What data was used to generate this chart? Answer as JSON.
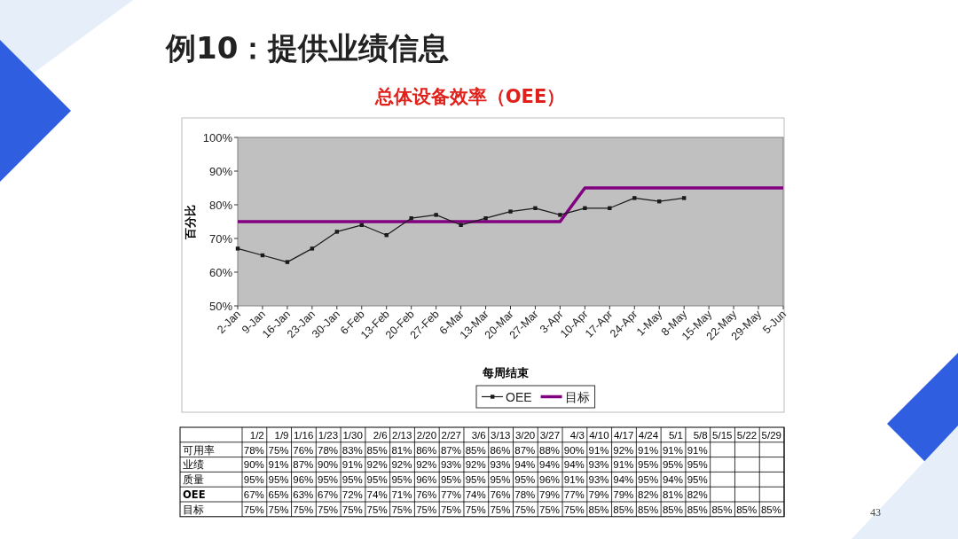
{
  "chart_data": [
    {
      "type": "line",
      "title": "例10：提供业绩信息",
      "subtitle": "总体设备效率（OEE）",
      "xlabel": "每周结束",
      "ylabel": "百分比",
      "categories": [
        "2-Jan",
        "9-Jan",
        "16-Jan",
        "23-Jan",
        "30-Jan",
        "6-Feb",
        "13-Feb",
        "20-Feb",
        "27-Feb",
        "6-Mar",
        "13-Mar",
        "20-Mar",
        "27-Mar",
        "3-Apr",
        "10-Apr",
        "17-Apr",
        "24-Apr",
        "1-May",
        "8-May",
        "15-May",
        "22-May",
        "29-May",
        "5-Jun"
      ],
      "series": [
        {
          "name": "OEE",
          "color": "#1a1a1a",
          "marker": "square",
          "values": [
            67,
            65,
            63,
            67,
            72,
            74,
            71,
            76,
            77,
            74,
            76,
            78,
            79,
            77,
            79,
            79,
            82,
            81,
            82,
            null,
            null,
            null,
            null
          ]
        },
        {
          "name": "目标",
          "color": "#800080",
          "marker": "none",
          "values": [
            75,
            75,
            75,
            75,
            75,
            75,
            75,
            75,
            75,
            75,
            75,
            75,
            75,
            75,
            85,
            85,
            85,
            85,
            85,
            85,
            85,
            85,
            85
          ]
        }
      ],
      "ylim": [
        50,
        100
      ],
      "yticks": [
        {
          "value": 50,
          "label": "50%"
        },
        {
          "value": 60,
          "label": "60%"
        },
        {
          "value": 70,
          "label": "70%"
        },
        {
          "value": 80,
          "label": "80%"
        },
        {
          "value": 90,
          "label": "90%"
        },
        {
          "value": 100,
          "label": "100%"
        }
      ],
      "grid": false,
      "legend": "bottom",
      "annotations": [
        "43"
      ]
    },
    {
      "type": "other",
      "categories": [
        "1/2",
        "1/9",
        "1/16",
        "1/23",
        "1/30",
        "2/6",
        "2/13",
        "2/20",
        "2/27",
        "3/6",
        "3/13",
        "3/20",
        "3/27",
        "4/3",
        "4/10",
        "4/17",
        "4/24",
        "5/1",
        "5/8",
        "5/15",
        "5/22",
        "5/29"
      ],
      "series": [
        {
          "name": "可用率",
          "values": [
            78,
            75,
            76,
            78,
            83,
            85,
            81,
            86,
            87,
            85,
            86,
            87,
            88,
            90,
            91,
            92,
            91,
            91,
            91,
            null,
            null,
            null
          ],
          "value_labels": [
            "78%",
            "75%",
            "76%",
            "78%",
            "83%",
            "85%",
            "81%",
            "86%",
            "87%",
            "85%",
            "86%",
            "87%",
            "88%",
            "90%",
            "91%",
            "92%",
            "91%",
            "91%",
            "91%",
            null,
            null,
            null
          ]
        },
        {
          "name": "业绩",
          "values": [
            90,
            91,
            87,
            90,
            91,
            92,
            92,
            92,
            93,
            92,
            93,
            94,
            94,
            94,
            93,
            91,
            95,
            95,
            95,
            null,
            null,
            null
          ],
          "value_labels": [
            "90%",
            "91%",
            "87%",
            "90%",
            "91%",
            "92%",
            "92%",
            "92%",
            "93%",
            "92%",
            "93%",
            "94%",
            "94%",
            "94%",
            "93%",
            "91%",
            "95%",
            "95%",
            "95%",
            null,
            null,
            null
          ]
        },
        {
          "name": "质量",
          "values": [
            95,
            95,
            96,
            95,
            95,
            95,
            95,
            96,
            95,
            95,
            95,
            95,
            96,
            91,
            93,
            94,
            95,
            94,
            95,
            null,
            null,
            null
          ],
          "value_labels": [
            "95%",
            "95%",
            "96%",
            "95%",
            "95%",
            "95%",
            "95%",
            "96%",
            "95%",
            "95%",
            "95%",
            "95%",
            "96%",
            "91%",
            "93%",
            "94%",
            "95%",
            "94%",
            "95%",
            null,
            null,
            null
          ]
        },
        {
          "name": "OEE",
          "values": [
            67,
            65,
            63,
            67,
            72,
            74,
            71,
            76,
            77,
            74,
            76,
            78,
            79,
            77,
            79,
            79,
            82,
            81,
            82,
            null,
            null,
            null
          ],
          "value_labels": [
            "67%",
            "65%",
            "63%",
            "67%",
            "72%",
            "74%",
            "71%",
            "76%",
            "77%",
            "74%",
            "76%",
            "78%",
            "79%",
            "77%",
            "79%",
            "79%",
            "82%",
            "81%",
            "82%",
            null,
            null,
            null
          ]
        },
        {
          "name": "目标",
          "values": [
            75,
            75,
            75,
            75,
            75,
            75,
            75,
            75,
            75,
            75,
            75,
            75,
            75,
            75,
            85,
            85,
            85,
            85,
            85,
            85,
            85,
            85
          ],
          "value_labels": [
            "75%",
            "75%",
            "75%",
            "75%",
            "75%",
            "75%",
            "75%",
            "75%",
            "75%",
            "75%",
            "75%",
            "75%",
            "75%",
            "75%",
            "85%",
            "85%",
            "85%",
            "85%",
            "85%",
            "85%",
            "85%",
            "85%"
          ]
        }
      ]
    }
  ]
}
